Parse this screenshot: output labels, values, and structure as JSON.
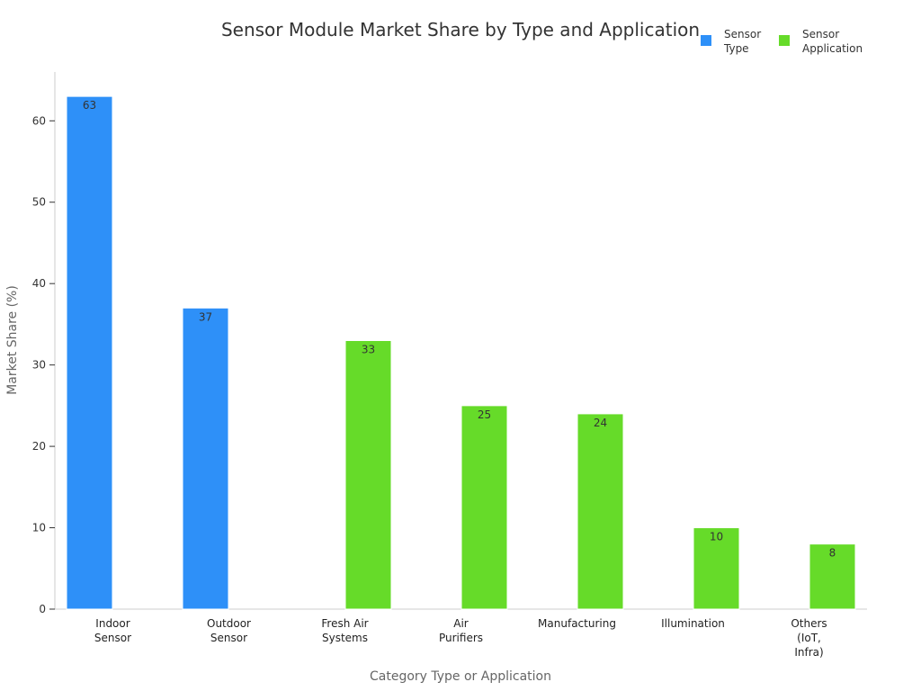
{
  "chart_data": {
    "type": "bar",
    "title": "Sensor Module Market Share by Type and Application",
    "xlabel": "Category Type or Application",
    "ylabel": "Market Share (%)",
    "ylim": [
      0,
      66
    ],
    "yticks": [
      0,
      10,
      20,
      30,
      40,
      50,
      60
    ],
    "grid": false,
    "legend_position": "top-right",
    "categories": [
      [
        "Indoor",
        "Sensor"
      ],
      [
        "Outdoor",
        "Sensor"
      ],
      [
        "Fresh Air",
        "Systems"
      ],
      [
        "Air",
        "Purifiers"
      ],
      [
        "Manufacturing"
      ],
      [
        "Illumination"
      ],
      [
        "Others",
        "(IoT,",
        "Infra)"
      ]
    ],
    "series": [
      {
        "name": [
          "Sensor",
          "Type"
        ],
        "color": "#2e90f8",
        "values": [
          63,
          37,
          null,
          null,
          null,
          null,
          null
        ]
      },
      {
        "name": [
          "Sensor",
          "Application"
        ],
        "color": "#66db29",
        "values": [
          null,
          null,
          33,
          25,
          24,
          10,
          8
        ]
      }
    ]
  }
}
